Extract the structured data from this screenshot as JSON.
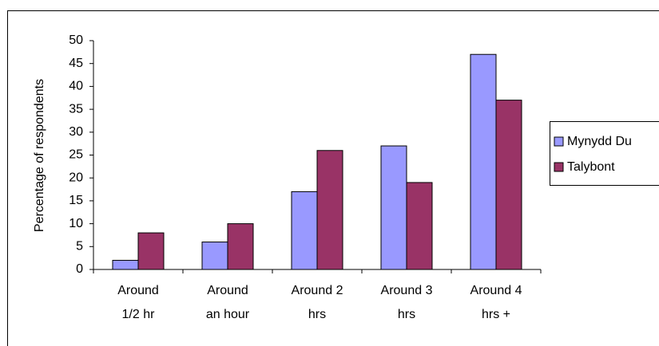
{
  "chart_data": {
    "type": "bar",
    "y_label": "Percentage of respondents",
    "categories": [
      [
        "Around",
        "1/2 hr"
      ],
      [
        "Around",
        "an hour"
      ],
      [
        "Around 2",
        "hrs"
      ],
      [
        "Around 3",
        "hrs"
      ],
      [
        "Around 4",
        "hrs +"
      ]
    ],
    "series": [
      {
        "name": "Mynydd Du",
        "color": "#9999ff",
        "values": [
          2,
          6,
          17,
          27,
          47
        ]
      },
      {
        "name": "Talybont",
        "color": "#993366",
        "values": [
          8,
          10,
          26,
          19,
          37
        ]
      }
    ],
    "ylim": [
      0,
      50
    ],
    "yticks": [
      0,
      5,
      10,
      15,
      20,
      25,
      30,
      35,
      40,
      45,
      50
    ],
    "legend": "right"
  }
}
